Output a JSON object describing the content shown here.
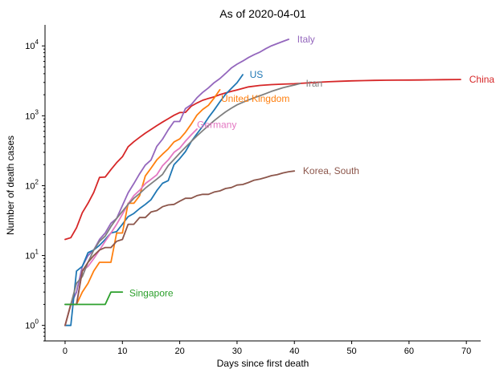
{
  "chart_data": {
    "type": "line",
    "title": "As of 2020-04-01",
    "xlabel": "Days since first death",
    "ylabel": "Number of death cases",
    "xlim": [
      -3.5,
      72.5
    ],
    "ylim": [
      0.6,
      20000
    ],
    "yscale": "log",
    "grid": false,
    "legend": "none",
    "x_ticks": [
      "0",
      "10",
      "20",
      "30",
      "40",
      "50",
      "60",
      "70"
    ],
    "x_tick_values": [
      0,
      10,
      20,
      30,
      40,
      50,
      60,
      70
    ],
    "y_ticks": [
      {
        "value": 1,
        "base": "10",
        "exp": "0"
      },
      {
        "value": 10,
        "base": "10",
        "exp": "1"
      },
      {
        "value": 100,
        "base": "10",
        "exp": "2"
      },
      {
        "value": 1000,
        "base": "10",
        "exp": "3"
      },
      {
        "value": 10000,
        "base": "10",
        "exp": "4"
      }
    ],
    "series": [
      {
        "name": "China",
        "color": "#d62728",
        "x": [
          0,
          1,
          2,
          3,
          4,
          5,
          6,
          7,
          8,
          9,
          10,
          11,
          12,
          13,
          14,
          15,
          16,
          17,
          18,
          19,
          20,
          21,
          22,
          23,
          24,
          25,
          26,
          27,
          28,
          29,
          30,
          32,
          34,
          36,
          38,
          40,
          42,
          44,
          46,
          48,
          50,
          52,
          54,
          56,
          58,
          60,
          62,
          64,
          66,
          69
        ],
        "values": [
          17,
          18,
          25,
          41,
          56,
          80,
          131,
          133,
          170,
          213,
          259,
          361,
          425,
          491,
          564,
          637,
          723,
          812,
          908,
          1016,
          1113,
          1118,
          1371,
          1523,
          1666,
          1770,
          1868,
          2004,
          2118,
          2236,
          2345,
          2592,
          2715,
          2788,
          2835,
          2870,
          2946,
          3015,
          3070,
          3119,
          3158,
          3189,
          3213,
          3226,
          3237,
          3245,
          3255,
          3270,
          3285,
          3305
        ]
      },
      {
        "name": "Italy",
        "color": "#9467bd",
        "x": [
          0,
          1,
          2,
          3,
          4,
          5,
          6,
          7,
          8,
          9,
          10,
          11,
          12,
          13,
          14,
          15,
          16,
          17,
          18,
          19,
          20,
          21,
          22,
          23,
          24,
          25,
          26,
          27,
          28,
          29,
          30,
          31,
          32,
          33,
          34,
          35,
          36,
          37,
          38,
          39
        ],
        "values": [
          1,
          2,
          3,
          7,
          10,
          12,
          17,
          21,
          29,
          34,
          52,
          79,
          107,
          148,
          197,
          233,
          366,
          463,
          631,
          827,
          827,
          1266,
          1441,
          1809,
          2158,
          2503,
          2978,
          3405,
          4032,
          4825,
          5476,
          6077,
          6820,
          7503,
          8165,
          9134,
          10023,
          10779,
          11591,
          12428
        ]
      },
      {
        "name": "US",
        "color": "#1f77b4",
        "x": [
          0,
          1,
          2,
          3,
          4,
          5,
          6,
          7,
          8,
          9,
          10,
          11,
          12,
          13,
          14,
          15,
          16,
          17,
          18,
          19,
          20,
          21,
          22,
          23,
          24,
          25,
          26,
          27,
          28,
          29,
          30,
          31
        ],
        "values": [
          1,
          1,
          6,
          7,
          11,
          12,
          14,
          17,
          21,
          22,
          28,
          36,
          40,
          47,
          54,
          63,
          85,
          108,
          118,
          200,
          244,
          307,
          427,
          552,
          706,
          942,
          1209,
          1581,
          2026,
          2467,
          2978,
          3873
        ]
      },
      {
        "name": "United Kingdom",
        "color": "#ff7f0e",
        "x": [
          0,
          1,
          2,
          3,
          4,
          5,
          6,
          7,
          8,
          9,
          10,
          11,
          12,
          13,
          14,
          15,
          16,
          17,
          18,
          19,
          20,
          21,
          22,
          23,
          24,
          25,
          26,
          27
        ],
        "values": [
          1,
          2,
          2,
          3,
          4,
          6,
          8,
          8,
          8,
          21,
          21,
          56,
          56,
          72,
          138,
          178,
          234,
          282,
          336,
          423,
          466,
          580,
          761,
          1021,
          1231,
          1411,
          1793,
          2357
        ]
      },
      {
        "name": "Germany",
        "color": "#e377c2",
        "x": [
          0,
          1,
          2,
          3,
          4,
          5,
          6,
          7,
          8,
          9,
          10,
          11,
          12,
          13,
          14,
          15,
          16,
          17,
          18,
          19,
          20,
          21,
          22,
          23
        ],
        "values": [
          1,
          2,
          2,
          6,
          7,
          9,
          12,
          16,
          21,
          28,
          39,
          55,
          72,
          86,
          107,
          123,
          143,
          193,
          233,
          300,
          344,
          433,
          533,
          645
        ]
      },
      {
        "name": "Iran",
        "color": "#7f7f7f",
        "x": [
          0,
          1,
          2,
          3,
          4,
          5,
          6,
          7,
          8,
          9,
          10,
          11,
          12,
          13,
          14,
          15,
          16,
          17,
          18,
          19,
          20,
          21,
          22,
          23,
          24,
          25,
          26,
          27,
          28,
          29,
          30,
          31,
          32,
          33,
          34,
          35,
          36,
          37,
          38,
          39,
          40,
          41
        ],
        "values": [
          2,
          2,
          4,
          5,
          8,
          12,
          16,
          19,
          26,
          34,
          43,
          54,
          66,
          77,
          92,
          107,
          124,
          145,
          194,
          237,
          291,
          354,
          429,
          514,
          611,
          724,
          853,
          988,
          1135,
          1284,
          1433,
          1556,
          1685,
          1812,
          1934,
          2077,
          2234,
          2378,
          2517,
          2640,
          2757,
          2898
        ]
      },
      {
        "name": "Korea, South",
        "color": "#8c564b",
        "x": [
          0,
          1,
          2,
          3,
          4,
          5,
          6,
          7,
          8,
          9,
          10,
          11,
          12,
          13,
          14,
          15,
          16,
          17,
          18,
          19,
          20,
          21,
          22,
          23,
          24,
          25,
          26,
          27,
          28,
          29,
          30,
          31,
          32,
          33,
          34,
          35,
          36,
          37,
          38,
          39,
          40
        ],
        "values": [
          1,
          2,
          2,
          6,
          8,
          10,
          12,
          13,
          13,
          16,
          17,
          28,
          28,
          35,
          35,
          42,
          44,
          50,
          53,
          54,
          60,
          66,
          66,
          72,
          75,
          75,
          81,
          84,
          91,
          94,
          102,
          104,
          111,
          120,
          124,
          131,
          139,
          144,
          152,
          158,
          162
        ]
      },
      {
        "name": "Singapore",
        "color": "#2ca02c",
        "x": [
          0,
          1,
          2,
          3,
          4,
          5,
          6,
          7,
          8,
          9,
          10
        ],
        "values": [
          2,
          2,
          2,
          2,
          2,
          2,
          2,
          2,
          3,
          3,
          3
        ]
      }
    ],
    "annotations": [
      {
        "text": "China",
        "series": "China",
        "x": 70.5,
        "y": 3305
      },
      {
        "text": "Italy",
        "series": "Italy",
        "x": 40.5,
        "y": 12428
      },
      {
        "text": "US",
        "series": "US",
        "x": 32.2,
        "y": 3873
      },
      {
        "text": "United Kingdom",
        "series": "United Kingdom",
        "x": 27.2,
        "y": 1750
      },
      {
        "text": "Germany",
        "series": "Germany",
        "x": 23,
        "y": 740
      },
      {
        "text": "Iran",
        "series": "Iran",
        "x": 42,
        "y": 2898
      },
      {
        "text": "Korea, South",
        "series": "Korea, South",
        "x": 41.5,
        "y": 162
      },
      {
        "text": "Singapore",
        "series": "Singapore",
        "x": 11.2,
        "y": 2.9
      }
    ]
  }
}
